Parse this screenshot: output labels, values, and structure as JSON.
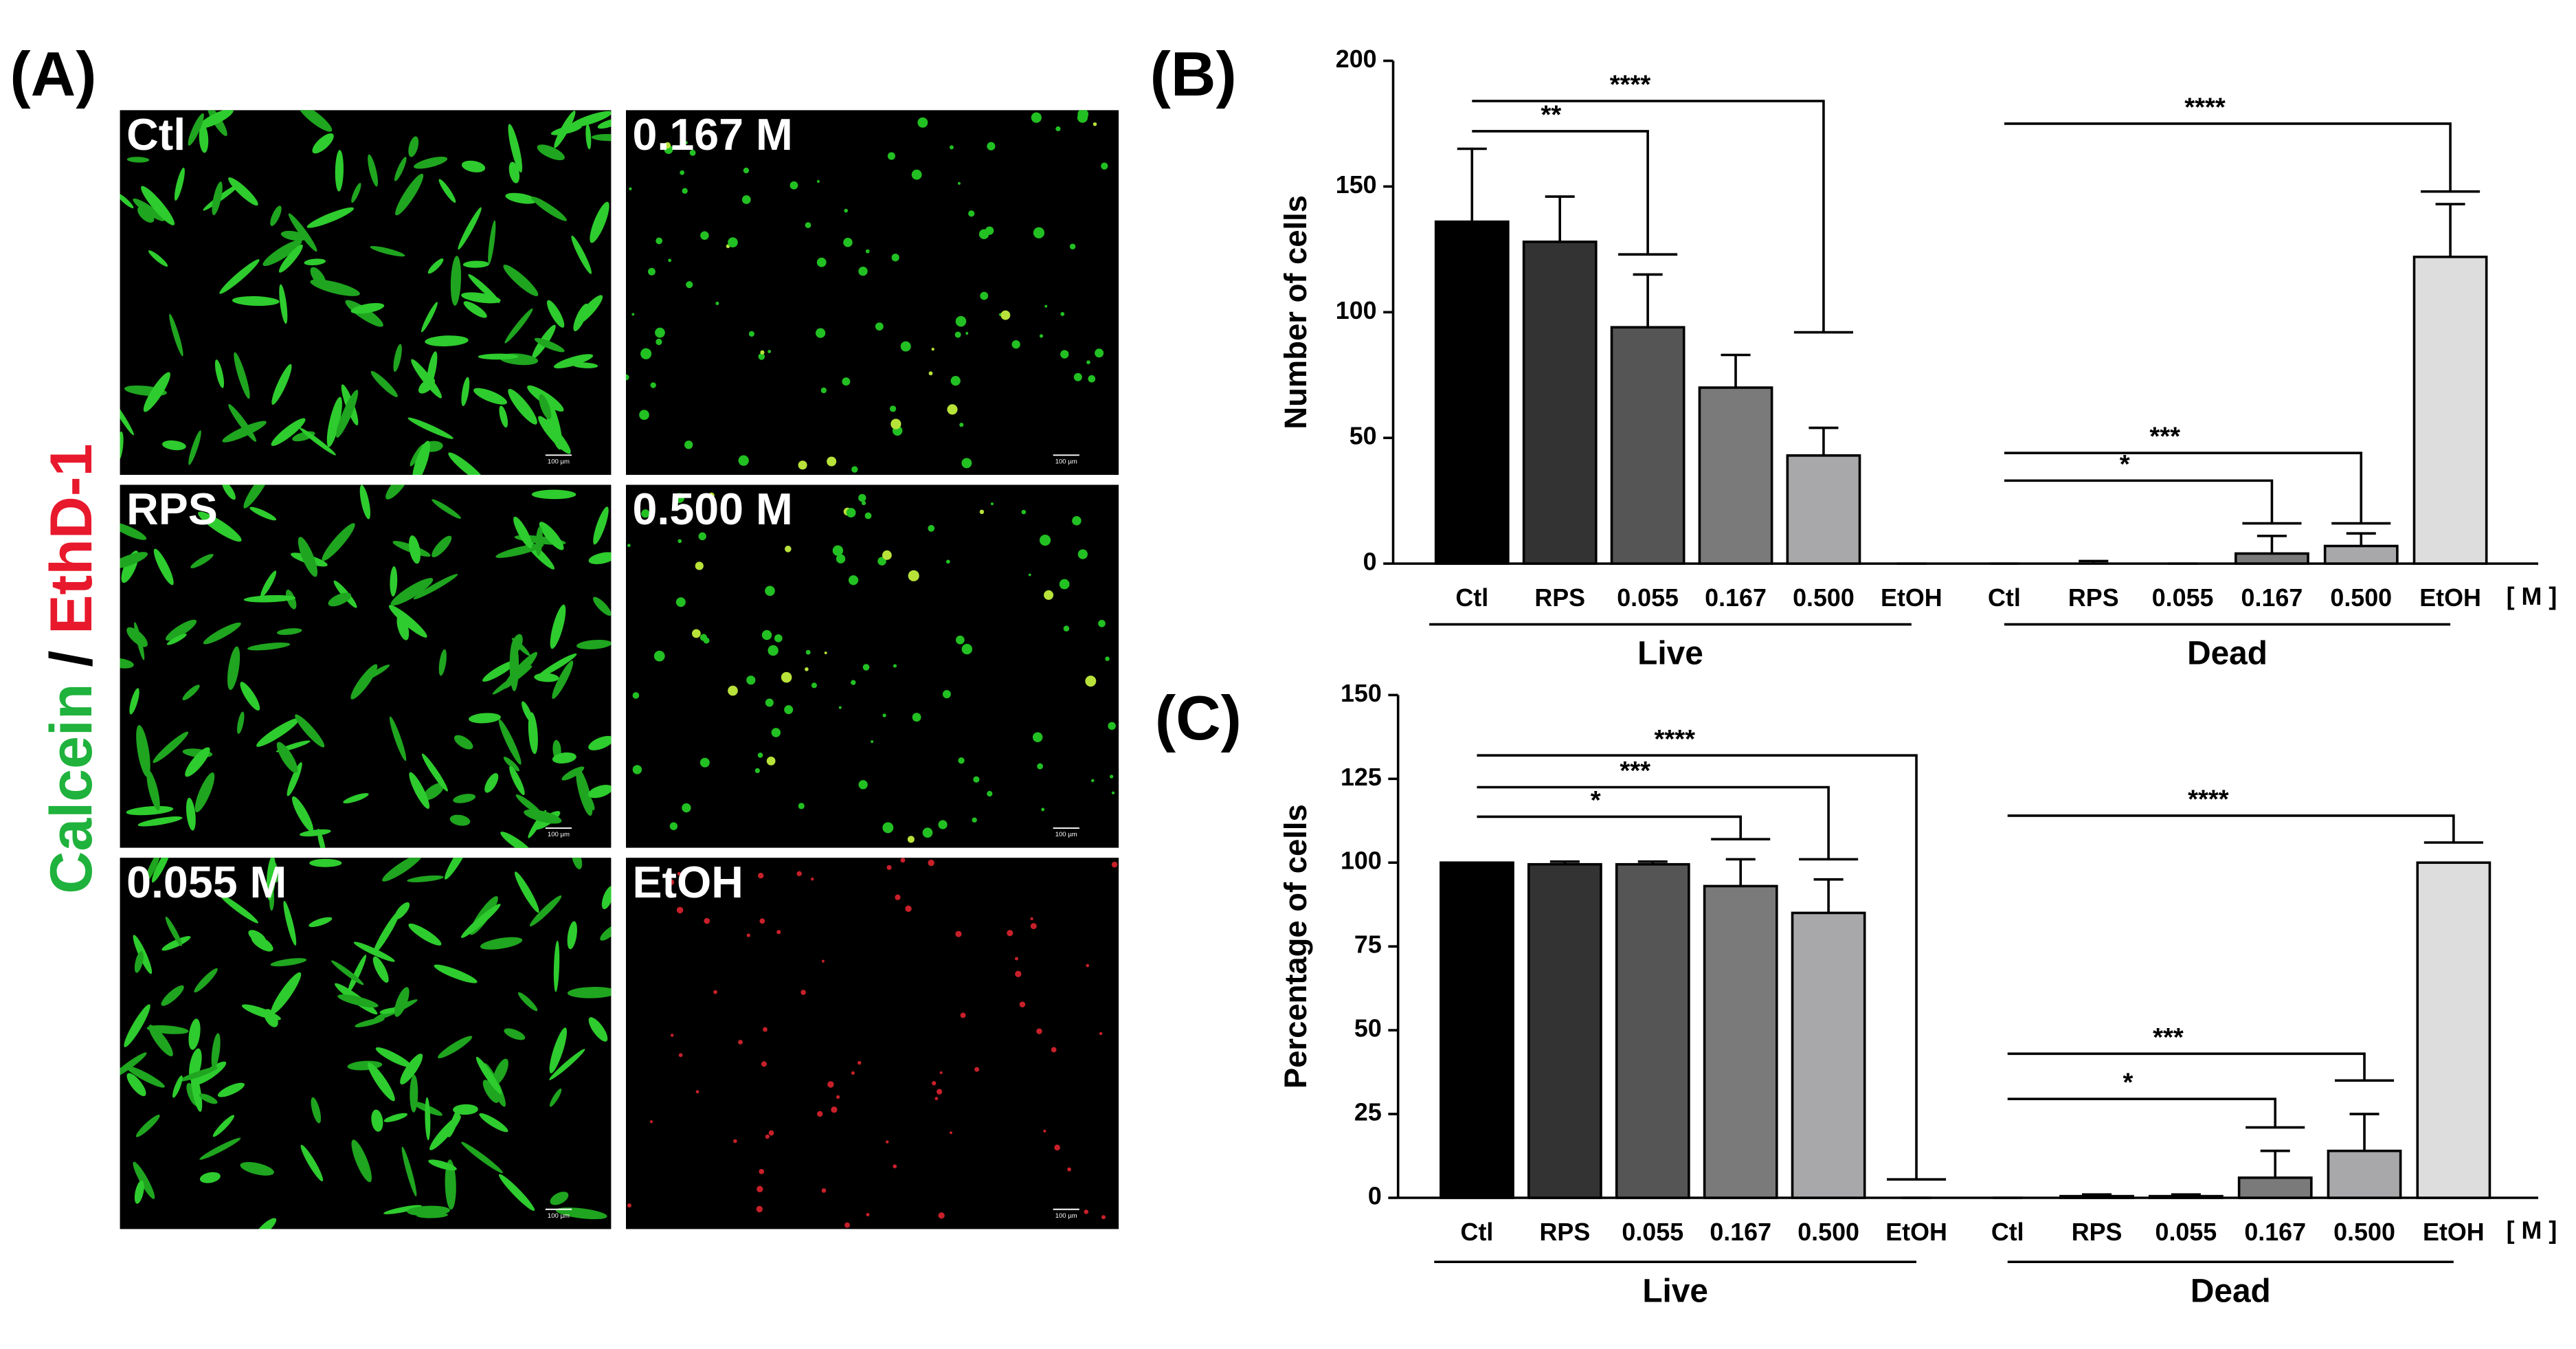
{
  "panel_a": {
    "label": "(A)",
    "stain_1": "Calcein",
    "separator": "/",
    "stain_2": "EthD-1",
    "scale_bar_label": "100 µm",
    "images": [
      {
        "label": "Ctl"
      },
      {
        "label": "0.167 M"
      },
      {
        "label": "RPS"
      },
      {
        "label": "0.500 M"
      },
      {
        "label": "0.055 M"
      },
      {
        "label": "EtOH"
      }
    ]
  },
  "chart_data": [
    {
      "type": "bar",
      "panel_label": "(B)",
      "ylabel": "Number of cells",
      "unit_label": "[ M ]",
      "group_labels": [
        "Live",
        "Dead"
      ],
      "categories": [
        "Ctl",
        "RPS",
        "0.055",
        "0.167",
        "0.500",
        "EtOH",
        "Ctl",
        "RPS",
        "0.055",
        "0.167",
        "0.500",
        "EtOH"
      ],
      "values": [
        136,
        128,
        94,
        70,
        43,
        0,
        0,
        0,
        0,
        4,
        7,
        122
      ],
      "errors": [
        29,
        18,
        21,
        13,
        11,
        0,
        0,
        1,
        0,
        7,
        5,
        21
      ],
      "colors": [
        "#000000",
        "#333333",
        "#555555",
        "#7a7a7a",
        "#a8a8aa",
        "#dddddd",
        "#000000",
        "#333333",
        "#555555",
        "#7a7a7a",
        "#a8a8aa",
        "#dddddd"
      ],
      "ylim": [
        0,
        200
      ],
      "yticks": [
        0,
        50,
        100,
        150,
        200
      ],
      "annotations": [
        {
          "text": "**",
          "from": 0,
          "to": 2,
          "y": 172,
          "y_end": 123
        },
        {
          "text": "****",
          "from": 0,
          "to": 4,
          "y": 184,
          "y_end": 92
        },
        {
          "text": "****",
          "from": 6,
          "to": 11,
          "y": 175,
          "y_end": 148
        },
        {
          "text": "***",
          "from": 6,
          "to": 10,
          "y": 44,
          "y_end": 16
        },
        {
          "text": "*",
          "from": 6,
          "to": 9,
          "y": 33,
          "y_end": 16
        }
      ]
    },
    {
      "type": "bar",
      "panel_label": "(C)",
      "ylabel": "Percentage of cells",
      "unit_label": "[ M ]",
      "group_labels": [
        "Live",
        "Dead"
      ],
      "categories": [
        "Ctl",
        "RPS",
        "0.055",
        "0.167",
        "0.500",
        "EtOH",
        "Ctl",
        "RPS",
        "0.055",
        "0.167",
        "0.500",
        "EtOH"
      ],
      "values": [
        100,
        99.5,
        99.5,
        93,
        85,
        0,
        0,
        0.5,
        0.5,
        6,
        14,
        100
      ],
      "errors": [
        0,
        0.8,
        0.8,
        8,
        10,
        0,
        0,
        0.5,
        0.5,
        8,
        11,
        0
      ],
      "colors": [
        "#000000",
        "#333333",
        "#555555",
        "#7a7a7a",
        "#a8a8aa",
        "#dddddd",
        "#000000",
        "#333333",
        "#555555",
        "#7a7a7a",
        "#a8a8aa",
        "#dddddd"
      ],
      "ylim": [
        0,
        150
      ],
      "yticks": [
        0,
        25,
        50,
        75,
        100,
        125,
        150
      ],
      "annotations": [
        {
          "text": "*",
          "from": 0,
          "to": 3,
          "y": 113.7,
          "y_end": 107
        },
        {
          "text": "***",
          "from": 0,
          "to": 4,
          "y": 122.5,
          "y_end": 101
        },
        {
          "text": "****",
          "from": 0,
          "to": 5,
          "y": 132,
          "y_end": 5.5
        },
        {
          "text": "****",
          "from": 6,
          "to": 11,
          "y": 114,
          "y_end": 106
        },
        {
          "text": "***",
          "from": 6,
          "to": 10,
          "y": 43,
          "y_end": 35
        },
        {
          "text": "*",
          "from": 6,
          "to": 9,
          "y": 29.5,
          "y_end": 21
        }
      ]
    }
  ]
}
